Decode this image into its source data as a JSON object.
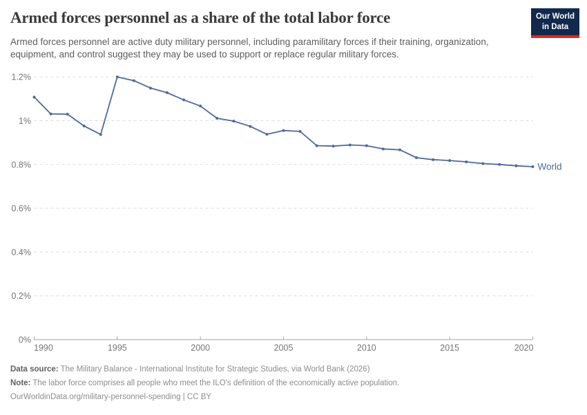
{
  "header": {
    "logo": {
      "line1": "Our World",
      "line2": "in Data",
      "bg_color": "#12294d",
      "stripe_color": "#dc2c20"
    }
  },
  "chart_data": {
    "type": "line",
    "title": "Armed forces personnel as a share of the total labor force",
    "subtitle": "Armed forces personnel are active duty military personnel, including paramilitary forces if their training, organization, equipment, and control suggest they may be used to support or replace regular military forces.",
    "x": [
      1990,
      1991,
      1992,
      1993,
      1994,
      1995,
      1996,
      1997,
      1998,
      1999,
      2000,
      2001,
      2002,
      2003,
      2004,
      2005,
      2006,
      2007,
      2008,
      2009,
      2010,
      2011,
      2012,
      2013,
      2014,
      2015,
      2016,
      2017,
      2018,
      2019,
      2020
    ],
    "series": [
      {
        "name": "World",
        "color": "#4C6A9C",
        "values": [
          1.108,
          1.031,
          1.03,
          0.976,
          0.937,
          1.2,
          1.183,
          1.149,
          1.128,
          1.095,
          1.067,
          1.011,
          0.998,
          0.974,
          0.938,
          0.955,
          0.951,
          0.886,
          0.884,
          0.889,
          0.886,
          0.871,
          0.867,
          0.831,
          0.822,
          0.818,
          0.812,
          0.804,
          0.8,
          0.794,
          0.79
        ]
      }
    ],
    "xlabel": "",
    "ylabel": "",
    "xlim": [
      1990,
      2020
    ],
    "ylim": [
      0,
      1.2
    ],
    "x_ticks": [
      1990,
      1995,
      2000,
      2005,
      2010,
      2015,
      2020
    ],
    "y_ticks": [
      {
        "value": 0,
        "label": "0%"
      },
      {
        "value": 0.2,
        "label": "0.2%"
      },
      {
        "value": 0.4,
        "label": "0.4%"
      },
      {
        "value": 0.6,
        "label": "0.6%"
      },
      {
        "value": 0.8,
        "label": "0.8%"
      },
      {
        "value": 1.0,
        "label": "1%"
      },
      {
        "value": 1.2,
        "label": "1.2%"
      }
    ],
    "grid": "horizontal-dashed",
    "legend_position": "end-of-line-label",
    "colors": {
      "gridline": "#dcdcdc",
      "axis_line": "#a3a3a3",
      "tick_label": "#757575"
    }
  },
  "footer": {
    "datasource_label": "Data source:",
    "datasource_text": " The Military Balance - International Institute for Strategic Studies, via World Bank (2026)",
    "note_label": "Note:",
    "note_text": " The labor force comprises all people who meet the ILO's definition of the economically active population.",
    "license_line": "OurWorldinData.org/military-personnel-spending | CC BY"
  }
}
